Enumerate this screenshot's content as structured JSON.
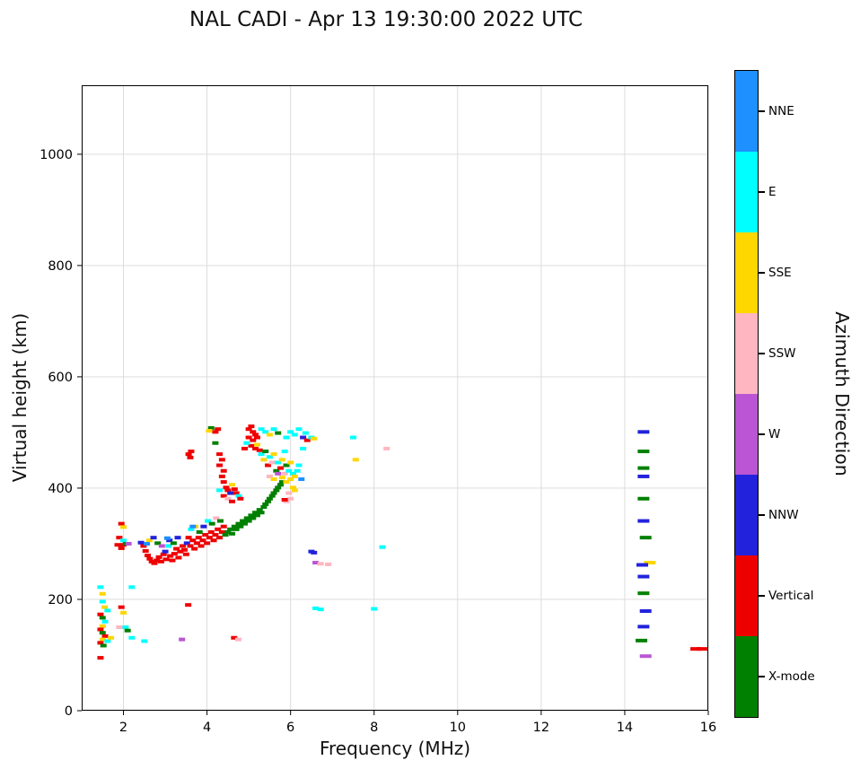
{
  "title": "NAL CADI - Apr 13 19:30:00 2022 UTC",
  "chart_data": {
    "type": "scatter",
    "title": "NAL CADI - Apr 13 19:30:00 2022 UTC",
    "xlabel": "Frequency (MHz)",
    "ylabel": "Virtual height (km)",
    "colorbar_label": "Azimuth Direction",
    "xlim": [
      1,
      16
    ],
    "ylim": [
      0,
      1124
    ],
    "xticks": [
      2,
      4,
      6,
      8,
      10,
      12,
      14,
      16
    ],
    "yticks": [
      0,
      200,
      400,
      600,
      800,
      1000
    ],
    "grid": true,
    "grid_color": "#d9d9d9",
    "legend_position": "right-colorbar",
    "marker": {
      "w": 7,
      "h": 4
    },
    "categories": [
      {
        "label": "NNE",
        "color": "#1E90FF"
      },
      {
        "label": "E",
        "color": "#00FFFF"
      },
      {
        "label": "SSE",
        "color": "#FFD700"
      },
      {
        "label": "SSW",
        "color": "#FFB6C1"
      },
      {
        "label": "W",
        "color": "#BA55D3"
      },
      {
        "label": "NNW",
        "color": "#2222DD"
      },
      {
        "label": "Vertical",
        "color": "#EE0000"
      },
      {
        "label": "X-mode",
        "color": "#008000"
      }
    ],
    "points": [
      [
        1.45,
        222,
        1
      ],
      [
        1.5,
        210,
        2
      ],
      [
        1.5,
        196,
        1
      ],
      [
        1.55,
        186,
        2
      ],
      [
        1.62,
        180,
        1
      ],
      [
        1.45,
        173,
        6
      ],
      [
        1.5,
        167,
        7
      ],
      [
        1.56,
        160,
        1
      ],
      [
        1.5,
        152,
        2
      ],
      [
        1.45,
        146,
        6
      ],
      [
        1.5,
        140,
        7
      ],
      [
        1.56,
        134,
        6
      ],
      [
        1.5,
        128,
        2
      ],
      [
        1.45,
        122,
        6
      ],
      [
        1.52,
        117,
        7
      ],
      [
        1.62,
        125,
        1
      ],
      [
        1.7,
        131,
        2
      ],
      [
        1.45,
        95,
        6
      ],
      [
        1.9,
        150,
        3
      ],
      [
        1.95,
        186,
        6
      ],
      [
        2.0,
        176,
        2
      ],
      [
        2.05,
        150,
        1
      ],
      [
        2.1,
        144,
        7
      ],
      [
        2.2,
        131,
        1
      ],
      [
        2.5,
        125,
        1
      ],
      [
        3.4,
        128,
        4
      ],
      [
        4.65,
        131,
        6
      ],
      [
        4.75,
        128,
        3
      ],
      [
        3.55,
        190,
        6
      ],
      [
        1.95,
        336,
        6
      ],
      [
        2.0,
        330,
        2
      ],
      [
        1.9,
        311,
        6
      ],
      [
        2.0,
        306,
        1
      ],
      [
        2.0,
        298,
        6
      ],
      [
        2.06,
        300,
        7
      ],
      [
        1.95,
        292,
        6
      ],
      [
        2.12,
        300,
        4
      ],
      [
        2.2,
        222,
        1
      ],
      [
        1.86,
        298,
        6
      ],
      [
        2.42,
        302,
        5
      ],
      [
        2.48,
        296,
        6
      ],
      [
        2.53,
        287,
        6
      ],
      [
        2.58,
        279,
        6
      ],
      [
        2.63,
        273,
        6
      ],
      [
        2.68,
        268,
        6
      ],
      [
        2.74,
        265,
        6
      ],
      [
        2.8,
        270,
        6
      ],
      [
        2.85,
        276,
        6
      ],
      [
        2.9,
        268,
        6
      ],
      [
        2.96,
        281,
        6
      ],
      [
        3.0,
        286,
        5
      ],
      [
        3.02,
        272,
        6
      ],
      [
        3.08,
        296,
        1
      ],
      [
        3.12,
        278,
        6
      ],
      [
        3.17,
        270,
        6
      ],
      [
        3.22,
        282,
        6
      ],
      [
        3.27,
        291,
        6
      ],
      [
        3.32,
        275,
        6
      ],
      [
        3.36,
        286,
        6
      ],
      [
        2.62,
        306,
        2
      ],
      [
        2.72,
        311,
        5
      ],
      [
        2.82,
        301,
        7
      ],
      [
        2.92,
        296,
        4
      ],
      [
        3.1,
        306,
        5
      ],
      [
        3.2,
        301,
        7
      ],
      [
        3.3,
        311,
        5
      ],
      [
        3.42,
        296,
        6
      ],
      [
        3.46,
        289,
        6
      ],
      [
        3.5,
        281,
        6
      ],
      [
        2.56,
        300,
        0
      ],
      [
        3.05,
        310,
        0
      ],
      [
        3.52,
        301,
        5
      ],
      [
        3.56,
        311,
        6
      ],
      [
        3.6,
        296,
        6
      ],
      [
        3.66,
        306,
        6
      ],
      [
        3.7,
        291,
        6
      ],
      [
        3.76,
        301,
        6
      ],
      [
        3.8,
        311,
        6
      ],
      [
        3.86,
        296,
        6
      ],
      [
        3.9,
        306,
        6
      ],
      [
        3.96,
        316,
        6
      ],
      [
        4.0,
        301,
        6
      ],
      [
        4.06,
        311,
        6
      ],
      [
        4.1,
        321,
        6
      ],
      [
        4.16,
        306,
        6
      ],
      [
        4.2,
        316,
        6
      ],
      [
        4.26,
        326,
        6
      ],
      [
        4.3,
        311,
        6
      ],
      [
        4.36,
        321,
        6
      ],
      [
        4.4,
        331,
        6
      ],
      [
        3.62,
        326,
        1
      ],
      [
        3.72,
        331,
        2
      ],
      [
        3.82,
        321,
        7
      ],
      [
        3.92,
        331,
        5
      ],
      [
        4.02,
        341,
        1
      ],
      [
        4.12,
        336,
        7
      ],
      [
        4.22,
        346,
        3
      ],
      [
        4.32,
        341,
        7
      ],
      [
        3.56,
        461,
        6
      ],
      [
        3.6,
        455,
        6
      ],
      [
        3.62,
        466,
        6
      ],
      [
        3.66,
        331,
        0
      ],
      [
        4.44,
        316,
        7
      ],
      [
        4.5,
        321,
        7
      ],
      [
        4.56,
        326,
        7
      ],
      [
        4.6,
        318,
        7
      ],
      [
        4.66,
        331,
        7
      ],
      [
        4.7,
        326,
        7
      ],
      [
        4.76,
        336,
        7
      ],
      [
        4.8,
        331,
        7
      ],
      [
        4.86,
        341,
        7
      ],
      [
        4.9,
        336,
        7
      ],
      [
        4.96,
        346,
        7
      ],
      [
        5.0,
        341,
        7
      ],
      [
        5.06,
        351,
        7
      ],
      [
        5.1,
        346,
        7
      ],
      [
        5.16,
        356,
        7
      ],
      [
        5.2,
        351,
        7
      ],
      [
        5.26,
        361,
        7
      ],
      [
        5.3,
        356,
        7
      ],
      [
        5.36,
        366,
        7
      ],
      [
        5.4,
        371,
        7
      ],
      [
        5.46,
        376,
        7
      ],
      [
        5.5,
        381,
        7
      ],
      [
        5.56,
        386,
        7
      ],
      [
        5.6,
        391,
        7
      ],
      [
        5.66,
        396,
        7
      ],
      [
        5.7,
        401,
        7
      ],
      [
        5.76,
        406,
        7
      ],
      [
        5.8,
        411,
        7
      ],
      [
        4.2,
        501,
        6
      ],
      [
        4.26,
        506,
        6
      ],
      [
        4.2,
        481,
        7
      ],
      [
        4.3,
        461,
        6
      ],
      [
        4.36,
        451,
        6
      ],
      [
        4.3,
        441,
        6
      ],
      [
        4.4,
        431,
        6
      ],
      [
        4.36,
        421,
        6
      ],
      [
        4.4,
        411,
        6
      ],
      [
        4.46,
        401,
        6
      ],
      [
        4.5,
        396,
        6
      ],
      [
        4.3,
        396,
        1
      ],
      [
        4.4,
        386,
        6
      ],
      [
        4.5,
        381,
        3
      ],
      [
        4.6,
        376,
        6
      ],
      [
        4.56,
        391,
        5
      ],
      [
        4.6,
        406,
        2
      ],
      [
        4.66,
        398,
        6
      ],
      [
        4.7,
        391,
        6
      ],
      [
        4.76,
        386,
        1
      ],
      [
        4.8,
        381,
        6
      ],
      [
        4.1,
        508,
        7
      ],
      [
        4.05,
        503,
        2
      ],
      [
        5.0,
        506,
        6
      ],
      [
        5.06,
        511,
        6
      ],
      [
        5.1,
        501,
        6
      ],
      [
        5.0,
        491,
        6
      ],
      [
        5.1,
        486,
        6
      ],
      [
        5.16,
        496,
        6
      ],
      [
        5.2,
        491,
        6
      ],
      [
        5.06,
        476,
        6
      ],
      [
        5.16,
        471,
        6
      ],
      [
        5.2,
        478,
        2
      ],
      [
        5.26,
        468,
        6
      ],
      [
        4.95,
        481,
        1
      ],
      [
        4.9,
        471,
        6
      ],
      [
        5.3,
        461,
        1
      ],
      [
        5.36,
        451,
        2
      ],
      [
        5.4,
        466,
        7
      ],
      [
        5.46,
        441,
        6
      ],
      [
        5.5,
        456,
        1
      ],
      [
        5.56,
        446,
        3
      ],
      [
        5.6,
        461,
        2
      ],
      [
        5.66,
        431,
        7
      ],
      [
        5.7,
        446,
        1
      ],
      [
        5.76,
        436,
        6
      ],
      [
        5.8,
        451,
        2
      ],
      [
        5.86,
        426,
        3
      ],
      [
        5.9,
        441,
        7
      ],
      [
        5.96,
        431,
        1
      ],
      [
        6.0,
        446,
        2
      ],
      [
        5.5,
        421,
        3
      ],
      [
        5.6,
        416,
        2
      ],
      [
        5.7,
        426,
        4
      ],
      [
        5.8,
        419,
        2
      ],
      [
        5.9,
        411,
        2
      ],
      [
        6.0,
        416,
        2
      ],
      [
        6.06,
        426,
        1
      ],
      [
        6.1,
        421,
        2
      ],
      [
        6.16,
        431,
        1
      ],
      [
        6.2,
        441,
        1
      ],
      [
        6.06,
        401,
        2
      ],
      [
        6.1,
        396,
        2
      ],
      [
        5.96,
        391,
        3
      ],
      [
        6.0,
        381,
        3
      ],
      [
        5.9,
        376,
        3
      ],
      [
        5.86,
        379,
        6
      ],
      [
        6.26,
        416,
        0
      ],
      [
        5.3,
        506,
        1
      ],
      [
        5.4,
        501,
        1
      ],
      [
        5.5,
        496,
        2
      ],
      [
        5.6,
        506,
        1
      ],
      [
        5.7,
        499,
        7
      ],
      [
        5.9,
        491,
        1
      ],
      [
        6.0,
        501,
        1
      ],
      [
        6.1,
        496,
        1
      ],
      [
        6.2,
        506,
        1
      ],
      [
        6.3,
        491,
        5
      ],
      [
        6.36,
        499,
        1
      ],
      [
        6.4,
        486,
        6
      ],
      [
        6.5,
        491,
        1
      ],
      [
        6.56,
        489,
        2
      ],
      [
        6.3,
        471,
        1
      ],
      [
        5.86,
        466,
        1
      ],
      [
        6.5,
        286,
        5
      ],
      [
        6.56,
        284,
        5
      ],
      [
        6.6,
        266,
        4
      ],
      [
        6.72,
        264,
        3
      ],
      [
        6.9,
        263,
        3
      ],
      [
        6.6,
        184,
        1
      ],
      [
        6.72,
        182,
        1
      ],
      [
        7.5,
        491,
        1
      ],
      [
        7.56,
        451,
        2
      ],
      [
        8.0,
        183,
        1
      ],
      [
        8.2,
        294,
        1
      ],
      [
        8.3,
        471,
        3
      ],
      [
        14.45,
        501,
        5,
        13
      ],
      [
        14.45,
        466,
        7,
        13
      ],
      [
        14.45,
        436,
        7,
        13
      ],
      [
        14.45,
        421,
        5,
        13
      ],
      [
        14.45,
        381,
        7,
        13
      ],
      [
        14.45,
        341,
        5,
        13
      ],
      [
        14.5,
        311,
        7,
        13
      ],
      [
        14.6,
        266,
        2,
        13
      ],
      [
        14.42,
        262,
        5,
        13
      ],
      [
        14.45,
        241,
        5,
        13
      ],
      [
        14.45,
        211,
        7,
        13
      ],
      [
        14.5,
        179,
        5,
        13
      ],
      [
        14.45,
        151,
        5,
        13
      ],
      [
        14.4,
        126,
        7,
        13
      ],
      [
        14.5,
        98,
        4,
        13
      ],
      [
        15.7,
        111,
        6,
        12
      ],
      [
        15.85,
        111,
        6,
        12
      ]
    ]
  }
}
